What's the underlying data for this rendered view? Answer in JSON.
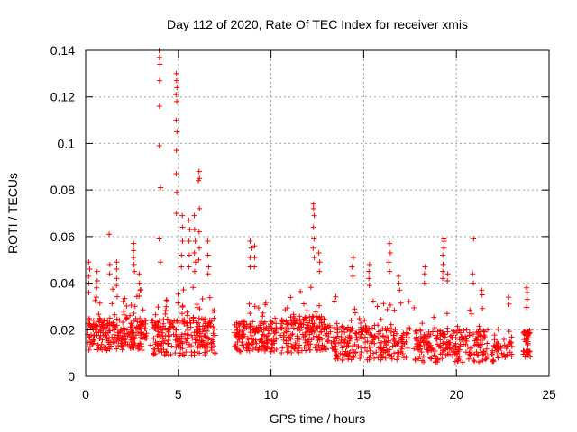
{
  "chart_data": {
    "type": "scatter",
    "title": "Day 112 of 2020, Rate Of TEC Index for receiver xmis",
    "xlabel": "GPS time / hours",
    "ylabel": "ROTI / TECUs",
    "xlim": [
      0,
      25
    ],
    "ylim": [
      0,
      0.14
    ],
    "xticks": [
      0,
      5,
      10,
      15,
      20,
      25
    ],
    "yticks": [
      0,
      0.02,
      0.04,
      0.06,
      0.08,
      0.1,
      0.12,
      0.14
    ],
    "xtick_labels": [
      "0",
      "5",
      "10",
      "15",
      "20",
      "25"
    ],
    "ytick_labels": [
      "0",
      "0.02",
      "0.04",
      "0.06",
      "0.08",
      "0.1",
      "0.12",
      "0.14"
    ],
    "grid": true,
    "marker": "+",
    "marker_color": "#ff0000",
    "segments": [
      {
        "x_start": 0.1,
        "x_end": 3.3,
        "base": 0.018,
        "spread": 0.014,
        "density": 260
      },
      {
        "x_start": 3.5,
        "x_end": 7.0,
        "base": 0.017,
        "spread": 0.016,
        "density": 260
      },
      {
        "x_start": 8.0,
        "x_end": 10.3,
        "base": 0.017,
        "spread": 0.013,
        "density": 170
      },
      {
        "x_start": 10.5,
        "x_end": 13.3,
        "base": 0.018,
        "spread": 0.016,
        "density": 200
      },
      {
        "x_start": 13.3,
        "x_end": 17.5,
        "base": 0.014,
        "spread": 0.014,
        "density": 260
      },
      {
        "x_start": 17.7,
        "x_end": 21.7,
        "base": 0.013,
        "spread": 0.014,
        "density": 240
      },
      {
        "x_start": 21.9,
        "x_end": 23.0,
        "base": 0.011,
        "spread": 0.01,
        "density": 50
      },
      {
        "x_start": 23.6,
        "x_end": 24.0,
        "base": 0.014,
        "spread": 0.012,
        "density": 40
      }
    ],
    "spikes": [
      {
        "x": 0.2,
        "values": [
          0.049,
          0.046,
          0.043,
          0.04,
          0.036
        ]
      },
      {
        "x": 0.6,
        "values": [
          0.045,
          0.041,
          0.038,
          0.034
        ]
      },
      {
        "x": 1.3,
        "values": [
          0.061,
          0.048,
          0.044
        ]
      },
      {
        "x": 1.7,
        "values": [
          0.049,
          0.046,
          0.042,
          0.039
        ]
      },
      {
        "x": 2.6,
        "values": [
          0.057,
          0.054,
          0.051,
          0.048,
          0.045
        ]
      },
      {
        "x": 2.9,
        "values": [
          0.044,
          0.04,
          0.037
        ]
      },
      {
        "x": 4.0,
        "values": [
          0.14,
          0.137,
          0.134,
          0.127,
          0.116,
          0.099,
          0.081,
          0.059,
          0.049
        ]
      },
      {
        "x": 4.9,
        "values": [
          0.13,
          0.127,
          0.124,
          0.121,
          0.118,
          0.11,
          0.105,
          0.097,
          0.087,
          0.079,
          0.07
        ]
      },
      {
        "x": 5.2,
        "values": [
          0.069,
          0.064,
          0.058,
          0.052,
          0.047
        ]
      },
      {
        "x": 5.6,
        "values": [
          0.067,
          0.063,
          0.058,
          0.052,
          0.047
        ]
      },
      {
        "x": 5.9,
        "values": [
          0.069,
          0.063,
          0.058,
          0.053,
          0.049,
          0.045
        ]
      },
      {
        "x": 6.1,
        "values": [
          0.088,
          0.085,
          0.084,
          0.072,
          0.062,
          0.055,
          0.05
        ]
      },
      {
        "x": 6.6,
        "values": [
          0.058,
          0.052,
          0.047,
          0.044
        ]
      },
      {
        "x": 8.9,
        "values": [
          0.058,
          0.055,
          0.051,
          0.047
        ]
      },
      {
        "x": 9.1,
        "values": [
          0.056,
          0.051,
          0.047
        ]
      },
      {
        "x": 12.3,
        "values": [
          0.074,
          0.072,
          0.069,
          0.064,
          0.059,
          0.055,
          0.051
        ]
      },
      {
        "x": 12.6,
        "values": [
          0.053,
          0.049,
          0.045
        ]
      },
      {
        "x": 14.4,
        "values": [
          0.051,
          0.047,
          0.043
        ]
      },
      {
        "x": 15.3,
        "values": [
          0.048,
          0.045,
          0.042,
          0.039
        ]
      },
      {
        "x": 16.4,
        "values": [
          0.057,
          0.053,
          0.049,
          0.045
        ]
      },
      {
        "x": 16.9,
        "values": [
          0.043,
          0.04,
          0.037
        ]
      },
      {
        "x": 18.3,
        "values": [
          0.047,
          0.044,
          0.04
        ]
      },
      {
        "x": 19.3,
        "values": [
          0.059,
          0.058,
          0.055,
          0.052,
          0.048,
          0.045,
          0.042
        ]
      },
      {
        "x": 19.5,
        "values": [
          0.044,
          0.041
        ]
      },
      {
        "x": 20.9,
        "values": [
          0.059,
          0.044,
          0.04
        ]
      },
      {
        "x": 21.4,
        "values": [
          0.037,
          0.035
        ]
      },
      {
        "x": 22.8,
        "values": [
          0.034,
          0.031
        ]
      },
      {
        "x": 23.8,
        "values": [
          0.038,
          0.036,
          0.033
        ]
      }
    ],
    "series": [
      {
        "name": "ROTI",
        "color": "#ff0000"
      }
    ]
  }
}
